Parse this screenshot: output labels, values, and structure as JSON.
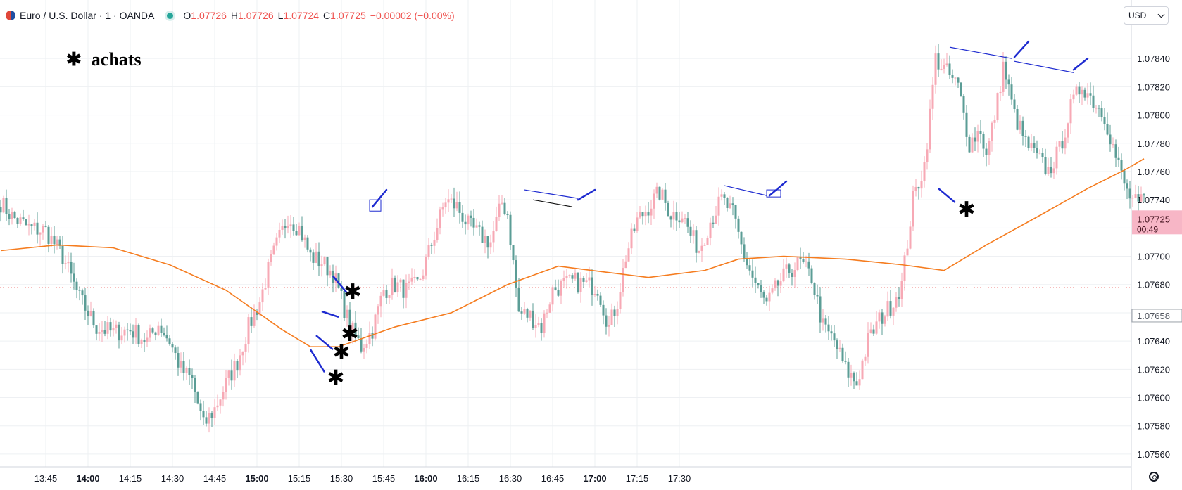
{
  "header": {
    "symbol": "Euro / U.S. Dollar · 1 · OANDA",
    "o_label": "O",
    "o_value": "1.07726",
    "h_label": "H",
    "h_value": "1.07726",
    "l_label": "L",
    "l_value": "1.07724",
    "c_label": "C",
    "c_value": "1.07725",
    "change": "−0.00002 (−0.00%)"
  },
  "currency": "USD",
  "note": {
    "icon": "asterisk-icon",
    "glyph": "✱",
    "label": "achats"
  },
  "price_tag": {
    "price": "1.07725",
    "countdown": "00:49"
  },
  "ref_tag": "1.07658",
  "chart_data": {
    "type": "candlestick",
    "symbol": "EURUSD",
    "timeframe": "1",
    "y_axis_ticks": [
      "1.07560",
      "1.07580",
      "1.07600",
      "1.07620",
      "1.07640",
      "1.07660",
      "1.07680",
      "1.07700",
      "1.07720",
      "1.07740",
      "1.07760",
      "1.07780",
      "1.07800",
      "1.07820",
      "1.07840"
    ],
    "ylim": [
      1.07552,
      1.07858
    ],
    "x_axis_ticks": [
      {
        "label": "13:45",
        "bold": false
      },
      {
        "label": "14:00",
        "bold": true
      },
      {
        "label": "14:15",
        "bold": false
      },
      {
        "label": "14:30",
        "bold": false
      },
      {
        "label": "14:45",
        "bold": false
      },
      {
        "label": "15:00",
        "bold": true
      },
      {
        "label": "15:15",
        "bold": false
      },
      {
        "label": "15:30",
        "bold": false
      },
      {
        "label": "15:45",
        "bold": false
      },
      {
        "label": "16:00",
        "bold": true
      },
      {
        "label": "16:15",
        "bold": false
      },
      {
        "label": "16:30",
        "bold": false
      },
      {
        "label": "16:45",
        "bold": false
      },
      {
        "label": "17:00",
        "bold": true
      },
      {
        "label": "17:15",
        "bold": false
      },
      {
        "label": "17:30",
        "bold": false
      }
    ],
    "time_start": "13:29",
    "time_end": "17:33",
    "waypoints": [
      [
        0,
        1.07738
      ],
      [
        4,
        1.07728
      ],
      [
        10,
        1.0772
      ],
      [
        16,
        1.07718
      ],
      [
        22,
        1.077
      ],
      [
        28,
        1.0767
      ],
      [
        34,
        1.0765
      ],
      [
        40,
        1.07646
      ],
      [
        46,
        1.07648
      ],
      [
        52,
        1.0764
      ],
      [
        56,
        1.07652
      ],
      [
        60,
        1.0764
      ],
      [
        64,
        1.0762
      ],
      [
        68,
        1.07612
      ],
      [
        72,
        1.0758
      ],
      [
        76,
        1.07592
      ],
      [
        80,
        1.0761
      ],
      [
        84,
        1.07625
      ],
      [
        88,
        1.0765
      ],
      [
        92,
        1.07668
      ],
      [
        95,
        1.0769
      ],
      [
        98,
        1.07708
      ],
      [
        102,
        1.07728
      ],
      [
        106,
        1.0772
      ],
      [
        110,
        1.077
      ],
      [
        114,
        1.07696
      ],
      [
        118,
        1.07688
      ],
      [
        120,
        1.07676
      ],
      [
        124,
        1.0765
      ],
      [
        128,
        1.07636
      ],
      [
        132,
        1.07648
      ],
      [
        136,
        1.07676
      ],
      [
        140,
        1.0768
      ],
      [
        144,
        1.07676
      ],
      [
        148,
        1.0768
      ],
      [
        150,
        1.0769
      ],
      [
        154,
        1.07715
      ],
      [
        158,
        1.0774
      ],
      [
        162,
        1.07735
      ],
      [
        166,
        1.07722
      ],
      [
        170,
        1.07715
      ],
      [
        174,
        1.0771
      ],
      [
        178,
        1.07738
      ],
      [
        180,
        1.0773
      ],
      [
        182,
        1.07695
      ],
      [
        184,
        1.0766
      ],
      [
        188,
        1.07658
      ],
      [
        192,
        1.0765
      ],
      [
        196,
        1.07676
      ],
      [
        200,
        1.0768
      ],
      [
        204,
        1.07682
      ],
      [
        208,
        1.0768
      ],
      [
        212,
        1.07678
      ],
      [
        216,
        1.0765
      ],
      [
        219,
        1.07668
      ],
      [
        222,
        1.077
      ],
      [
        226,
        1.07725
      ],
      [
        230,
        1.07735
      ],
      [
        234,
        1.07745
      ],
      [
        238,
        1.0773
      ],
      [
        242,
        1.0773
      ],
      [
        245,
        1.07715
      ],
      [
        248,
        1.07705
      ],
      [
        252,
        1.07725
      ],
      [
        256,
        1.0774
      ],
      [
        260,
        1.0773
      ],
      [
        264,
        1.077
      ],
      [
        268,
        1.0768
      ],
      [
        272,
        1.07665
      ],
      [
        276,
        1.0768
      ],
      [
        280,
        1.0769
      ],
      [
        284,
        1.07695
      ],
      [
        288,
        1.07685
      ],
      [
        292,
        1.0765
      ],
      [
        296,
        1.0764
      ],
      [
        300,
        1.0762
      ],
      [
        304,
        1.0761
      ],
      [
        308,
        1.0764
      ],
      [
        312,
        1.07655
      ],
      [
        316,
        1.07665
      ],
      [
        320,
        1.0768
      ],
      [
        324,
        1.0774
      ],
      [
        328,
        1.07765
      ],
      [
        330,
        1.078
      ],
      [
        332,
        1.0784
      ],
      [
        336,
        1.0783
      ],
      [
        340,
        1.0782
      ],
      [
        344,
        1.0778
      ],
      [
        348,
        1.0779
      ],
      [
        350,
        1.0777
      ],
      [
        354,
        1.0781
      ],
      [
        356,
        1.07835
      ],
      [
        360,
        1.078
      ],
      [
        364,
        1.0778
      ],
      [
        368,
        1.0777
      ],
      [
        372,
        1.0776
      ],
      [
        376,
        1.07775
      ],
      [
        380,
        1.07805
      ],
      [
        384,
        1.07822
      ],
      [
        388,
        1.0781
      ],
      [
        392,
        1.078
      ],
      [
        396,
        1.0777
      ],
      [
        400,
        1.07745
      ],
      [
        404,
        1.07735
      ],
      [
        406,
        1.0774
      ]
    ],
    "moving_average": [
      [
        0,
        1.07704
      ],
      [
        20,
        1.07708
      ],
      [
        40,
        1.07706
      ],
      [
        60,
        1.07694
      ],
      [
        80,
        1.07676
      ],
      [
        100,
        1.07648
      ],
      [
        110,
        1.07636
      ],
      [
        120,
        1.07636
      ],
      [
        140,
        1.0765
      ],
      [
        160,
        1.0766
      ],
      [
        180,
        1.0768
      ],
      [
        198,
        1.07693
      ],
      [
        210,
        1.0769
      ],
      [
        230,
        1.07685
      ],
      [
        250,
        1.0769
      ],
      [
        262,
        1.07698
      ],
      [
        278,
        1.077
      ],
      [
        300,
        1.07698
      ],
      [
        320,
        1.07694
      ],
      [
        335,
        1.0769
      ],
      [
        350,
        1.07708
      ],
      [
        370,
        1.0773
      ],
      [
        386,
        1.07748
      ],
      [
        400,
        1.07762
      ],
      [
        406,
        1.07769
      ]
    ],
    "horizontal_level": 1.07678,
    "annotations": {
      "asterisks": [
        [
          125,
          1.07676
        ],
        [
          124,
          1.07646
        ],
        [
          121,
          1.07633
        ],
        [
          119,
          1.07615
        ],
        [
          343,
          1.07734
        ]
      ],
      "entry_lines": [
        [
          [
            118,
            1.07686
          ],
          [
            123,
            1.07674
          ]
        ],
        [
          [
            114,
            1.07661
          ],
          [
            120,
            1.07657
          ]
        ],
        [
          [
            112,
            1.07644
          ],
          [
            118,
            1.07634
          ]
        ],
        [
          [
            110,
            1.07634
          ],
          [
            115,
            1.07618
          ]
        ],
        [
          [
            333,
            1.07748
          ],
          [
            339,
            1.07738
          ]
        ]
      ],
      "trend_lines": [
        {
          "points": [
            [
              186,
              1.07747
            ],
            [
              205,
              1.07741
            ]
          ],
          "color": "#1e2bd0"
        },
        {
          "points": [
            [
              189,
              1.0774
            ],
            [
              203,
              1.07735
            ]
          ],
          "color": "#111111"
        },
        {
          "points": [
            [
              257,
              1.0775
            ],
            [
              272,
              1.07743
            ]
          ],
          "color": "#1e2bd0"
        },
        {
          "points": [
            [
              337,
              1.07848
            ],
            [
              359,
              1.0784
            ]
          ],
          "color": "#1e2bd0"
        },
        {
          "points": [
            [
              360,
              1.07838
            ],
            [
              381,
              1.0783
            ]
          ],
          "color": "#1e2bd0"
        }
      ],
      "up_arrows": [
        [
          [
            132,
            1.07735
          ],
          [
            137,
            1.07747
          ]
        ],
        [
          [
            205,
            1.0774
          ],
          [
            211,
            1.07747
          ]
        ],
        [
          [
            273,
            1.07743
          ],
          [
            279,
            1.07753
          ]
        ],
        [
          [
            360,
            1.07841
          ],
          [
            365,
            1.07852
          ]
        ],
        [
          [
            381,
            1.07832
          ],
          [
            386,
            1.0784
          ]
        ]
      ],
      "boxes": [
        [
          131,
          1.0774,
          135,
          1.07732
        ],
        [
          272,
          1.07747,
          277,
          1.07742
        ]
      ]
    }
  }
}
